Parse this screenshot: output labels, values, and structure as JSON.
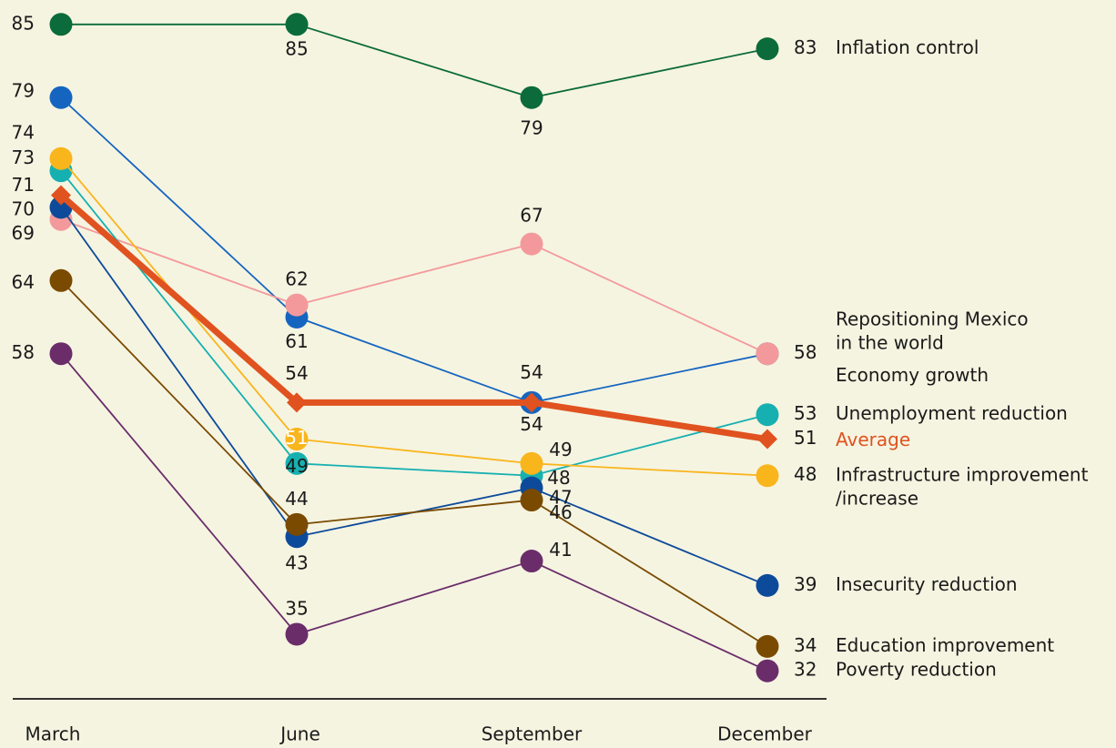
{
  "chart_data": {
    "type": "line",
    "categories": [
      "March",
      "June",
      "September",
      "December"
    ],
    "ylim": [
      30,
      87
    ],
    "series": [
      {
        "name": "Inflation control",
        "color": "#0b6b3a",
        "values": [
          85,
          85,
          79,
          83
        ]
      },
      {
        "name": "Economy growth",
        "color": "#1565c0",
        "values": [
          79,
          61,
          54,
          58
        ]
      },
      {
        "name": "Repositioning Mexico\nin the world",
        "color": "#f4999b",
        "values": [
          69,
          62,
          67,
          58
        ]
      },
      {
        "name": "Average",
        "color": "#e0521f",
        "marker": "diamond",
        "values": [
          71,
          54,
          54,
          51
        ]
      },
      {
        "name": "Unemployment reduction",
        "color": "#17b0b0",
        "values": [
          73,
          49,
          48,
          53
        ]
      },
      {
        "name": "Infrastructure improvement\n/increase",
        "color": "#f9b51c",
        "values": [
          74,
          51,
          49,
          48
        ]
      },
      {
        "name": "Insecurity reduction",
        "color": "#0d4a9a",
        "values": [
          70,
          43,
          47,
          39
        ]
      },
      {
        "name": "Education improvement",
        "color": "#7a4a00",
        "values": [
          64,
          44,
          46,
          34
        ]
      },
      {
        "name": "Poverty reduction",
        "color": "#6a2d6a",
        "values": [
          58,
          35,
          41,
          32
        ]
      }
    ]
  }
}
